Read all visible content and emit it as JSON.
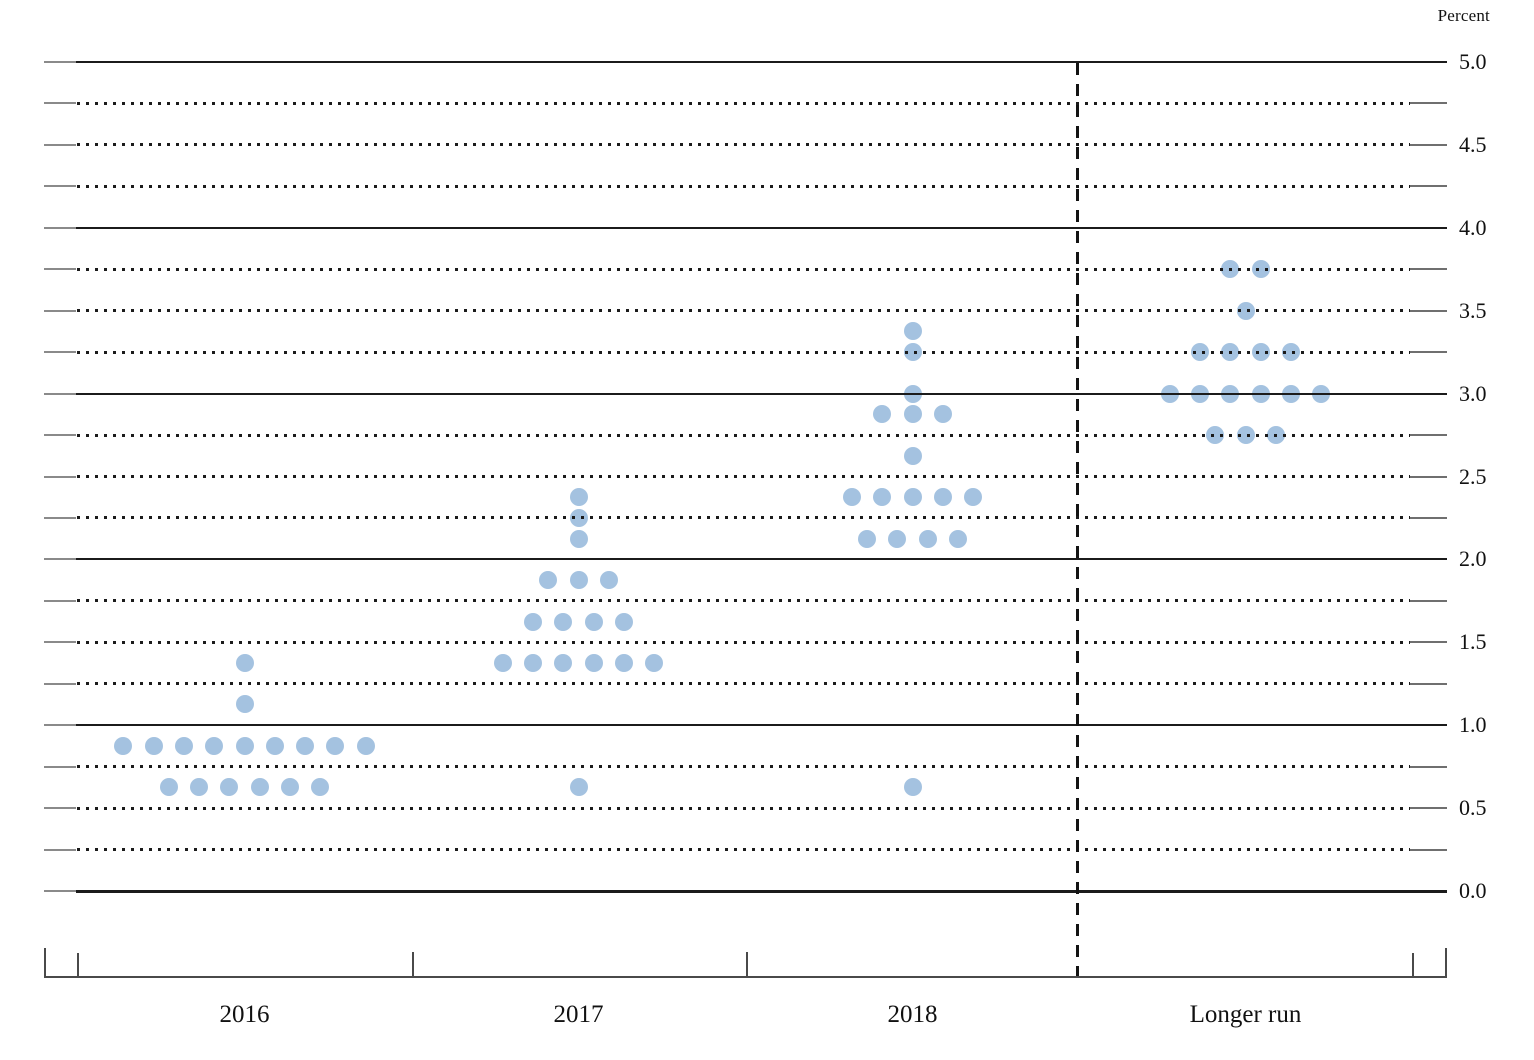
{
  "colors": {
    "dot": "#a4c2e0",
    "gridline": "#1b1b1b",
    "axis": "#4a4a4a",
    "text": "#111111"
  },
  "chart_data": {
    "type": "scatter",
    "subtype": "fomc-dot-plot",
    "title": "",
    "ylabel": "Percent",
    "xlabel": "",
    "ylim": [
      0.0,
      5.0
    ],
    "y_label_step": 0.5,
    "y_grid_step": 0.25,
    "grid": "dotted quarter-point rows, solid integer rows",
    "legend_position": "none",
    "y_tick_labels": [
      "5.0",
      "4.5",
      "4.0",
      "3.5",
      "3.0",
      "2.5",
      "2.0",
      "1.5",
      "1.0",
      "0.5",
      "0.0"
    ],
    "categories": [
      "2016",
      "2017",
      "2018",
      "Longer run"
    ],
    "series": [
      {
        "name": "2016",
        "dots": {
          "1.375": 1,
          "1.125": 1,
          "0.875": 9,
          "0.625": 6
        }
      },
      {
        "name": "2017",
        "dots": {
          "2.375": 1,
          "2.25": 1,
          "2.125": 1,
          "1.875": 3,
          "1.625": 4,
          "1.375": 6,
          "0.625": 1
        }
      },
      {
        "name": "2018",
        "dots": {
          "3.375": 1,
          "3.25": 1,
          "3.0": 1,
          "2.875": 3,
          "2.625": 1,
          "2.375": 5,
          "2.125": 4,
          "0.625": 1
        }
      },
      {
        "name": "Longer run",
        "dots": {
          "3.75": 2,
          "3.5": 1,
          "3.25": 4,
          "3.0": 6,
          "2.75": 3
        }
      }
    ]
  }
}
